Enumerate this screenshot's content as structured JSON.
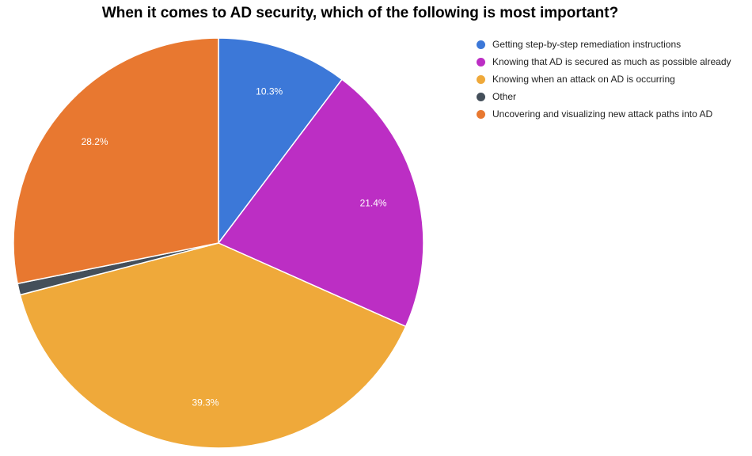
{
  "chart_data": {
    "type": "pie",
    "title": "When it comes to AD security, which of the following is most important?",
    "categories": [
      "Getting step-by-step remediation instructions",
      "Knowing that AD is secured as much as possible already",
      "Knowing when an attack on AD is occurring",
      "Other",
      "Uncovering and visualizing new attack paths into AD"
    ],
    "values": [
      10.3,
      21.4,
      39.3,
      0.9,
      28.2
    ],
    "data_labels": [
      "10.3%",
      "21.4%",
      "39.3%",
      "",
      "28.2%"
    ],
    "colors": [
      "#3C78D8",
      "#BC2EC4",
      "#EFA93A",
      "#444F5A",
      "#E87830"
    ],
    "legend_position": "top-right",
    "start_angle": "12 o'clock, clockwise"
  }
}
